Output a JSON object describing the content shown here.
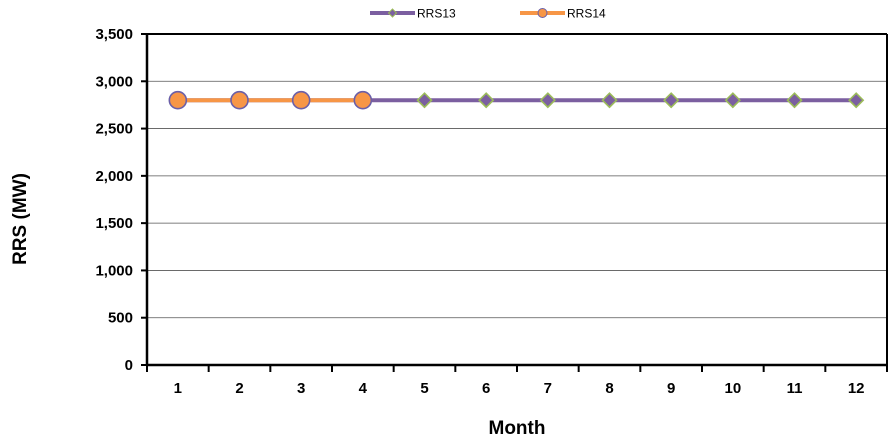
{
  "chart_data": {
    "type": "line",
    "xlabel": "Month",
    "ylabel": "RRS (MW)",
    "ylim": [
      0,
      3500
    ],
    "yticks": [
      "0",
      "500",
      "1,000",
      "1,500",
      "2,000",
      "2,500",
      "3,000",
      "3,500"
    ],
    "ytick_values": [
      0,
      500,
      1000,
      1500,
      2000,
      2500,
      3000,
      3500
    ],
    "categories": [
      "1",
      "2",
      "3",
      "4",
      "5",
      "6",
      "7",
      "8",
      "9",
      "10",
      "11",
      "12"
    ],
    "grid": "horizontal",
    "legend_position": "top-center",
    "series": [
      {
        "name": "RRS13",
        "marker": "diamond",
        "color": "#7b5fa0",
        "marker_color": "#7b5fa0",
        "marker_edge": "#9bbb59",
        "values": [
          2800,
          2800,
          2800,
          2800,
          2800,
          2800,
          2800,
          2800,
          2800,
          2800,
          2800,
          2800
        ]
      },
      {
        "name": "RRS14",
        "marker": "circle",
        "color": "#f79646",
        "marker_color": "#f79646",
        "marker_edge": "#6a5fa8",
        "values": [
          2800,
          2800,
          2800,
          2800,
          null,
          null,
          null,
          null,
          null,
          null,
          null,
          null
        ]
      }
    ]
  }
}
